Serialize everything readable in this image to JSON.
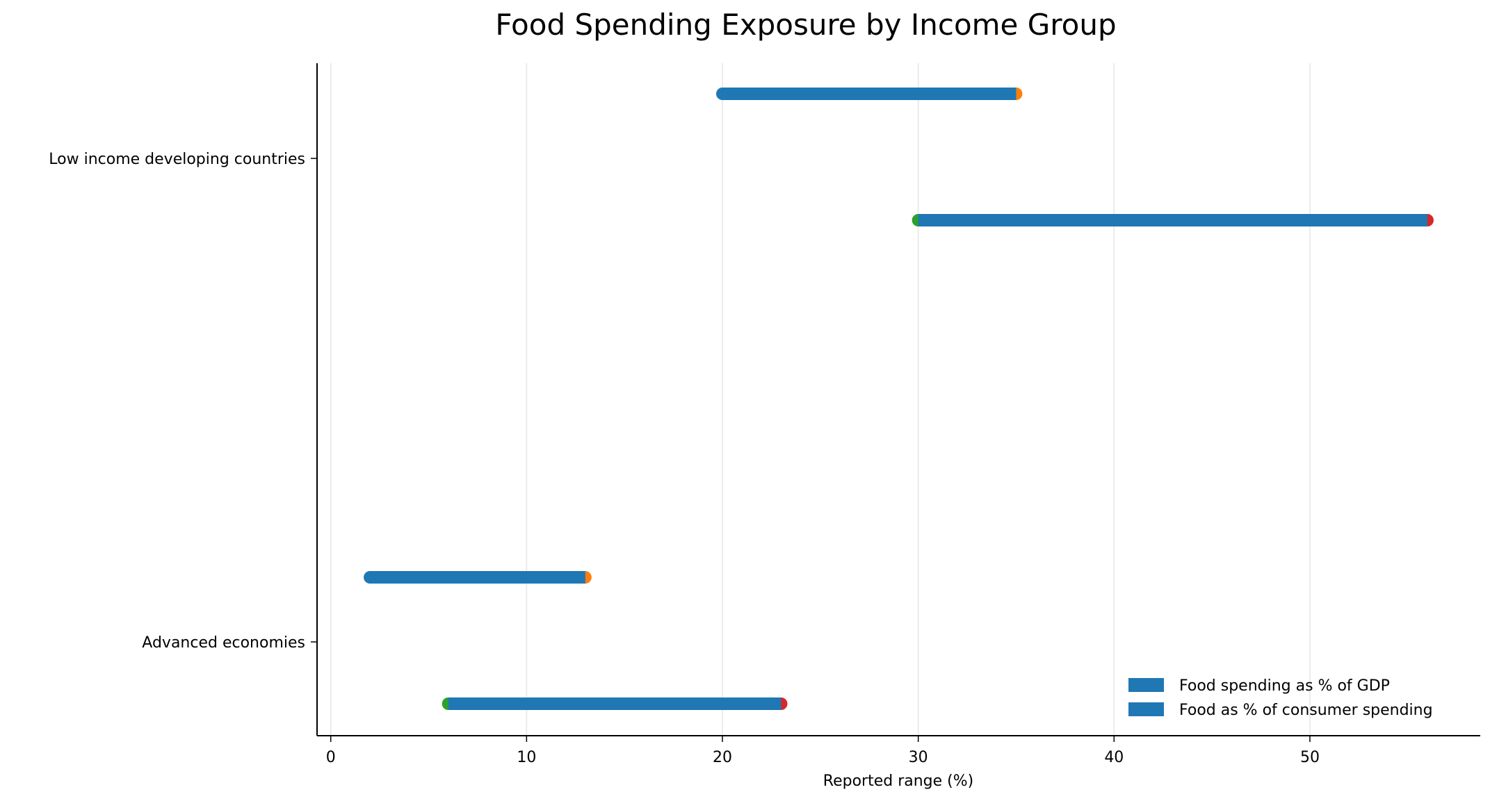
{
  "chart_data": {
    "type": "range-bar",
    "title": "Food Spending Exposure by Income Group",
    "xlabel": "Reported range (%)",
    "ylabel": "",
    "xlim": [
      -0.7,
      58.7
    ],
    "xticks": [
      0,
      10,
      20,
      30,
      40,
      50
    ],
    "grid": "vertical",
    "legend_position": "bottom-right",
    "categories": [
      "Low income developing countries",
      "Advanced economies"
    ],
    "series": [
      {
        "name": "Food spending as % of GDP",
        "color": "#1f77b4",
        "low_marker_color": "#1f77b4",
        "high_marker_color": "#ff7f0e",
        "values": [
          [
            20,
            35
          ],
          [
            2,
            13
          ]
        ]
      },
      {
        "name": "Food as % of consumer spending",
        "color": "#1f77b4",
        "low_marker_color": "#2ca02c",
        "high_marker_color": "#d62728",
        "values": [
          [
            30,
            56
          ],
          [
            6,
            23
          ]
        ]
      }
    ]
  }
}
